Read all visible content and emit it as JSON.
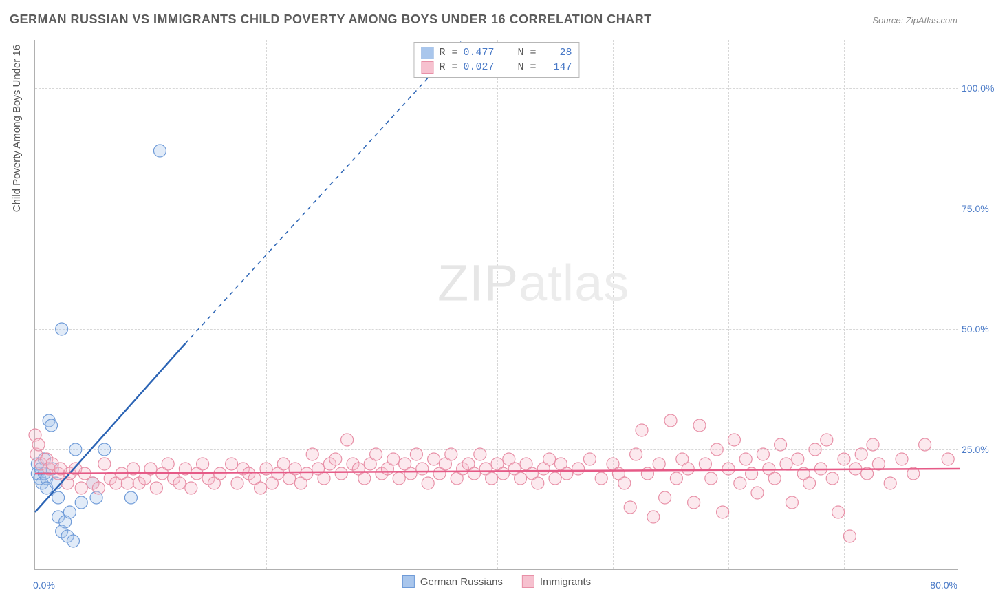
{
  "title": "GERMAN RUSSIAN VS IMMIGRANTS CHILD POVERTY AMONG BOYS UNDER 16 CORRELATION CHART",
  "source": "Source: ZipAtlas.com",
  "watermark_a": "ZIP",
  "watermark_b": "atlas",
  "chart": {
    "type": "scatter",
    "ylabel": "Child Poverty Among Boys Under 16",
    "xlim": [
      0,
      80
    ],
    "ylim": [
      0,
      110
    ],
    "xtick_vals": [
      0,
      80
    ],
    "xtick_labels": [
      "0.0%",
      "80.0%"
    ],
    "xtick_minor": [
      10,
      20,
      30,
      40,
      50,
      60,
      70
    ],
    "ytick_vals": [
      25,
      50,
      75,
      100
    ],
    "ytick_labels": [
      "25.0%",
      "50.0%",
      "75.0%",
      "100.0%"
    ],
    "grid_color": "#d7d7d7",
    "background_color": "#ffffff",
    "axis_color": "#b0b0b0",
    "tick_label_color": "#4a7ac7",
    "marker_radius": 9,
    "marker_stroke_width": 1.2,
    "marker_fill_opacity": 0.35,
    "series": [
      {
        "name": "German Russians",
        "color_fill": "#a9c6ec",
        "color_stroke": "#6f9bd8",
        "trend_color": "#2b64b5",
        "trend_solid": {
          "x1": 0,
          "y1": 12,
          "x2": 13,
          "y2": 47
        },
        "trend_dashed": {
          "x1": 13,
          "y1": 47,
          "x2": 37,
          "y2": 110
        },
        "R": "0.477",
        "N": "28",
        "points": [
          [
            0.2,
            20
          ],
          [
            0.2,
            22
          ],
          [
            0.4,
            19
          ],
          [
            0.5,
            21
          ],
          [
            0.6,
            18
          ],
          [
            0.8,
            20
          ],
          [
            0.8,
            23
          ],
          [
            1.0,
            19
          ],
          [
            1.0,
            17
          ],
          [
            1.2,
            31
          ],
          [
            1.4,
            30
          ],
          [
            1.5,
            21
          ],
          [
            1.8,
            18
          ],
          [
            2.0,
            15
          ],
          [
            2.0,
            11
          ],
          [
            2.3,
            8
          ],
          [
            2.6,
            10
          ],
          [
            2.8,
            7
          ],
          [
            3.0,
            12
          ],
          [
            3.3,
            6
          ],
          [
            3.5,
            25
          ],
          [
            4.0,
            14
          ],
          [
            5.0,
            18
          ],
          [
            5.3,
            15
          ],
          [
            6.0,
            25
          ],
          [
            8.3,
            15
          ],
          [
            2.3,
            50
          ],
          [
            10.8,
            87
          ]
        ]
      },
      {
        "name": "Immigrants",
        "color_fill": "#f6c1cf",
        "color_stroke": "#e890a7",
        "trend_color": "#e65a87",
        "trend_solid": {
          "x1": 0,
          "y1": 20,
          "x2": 80,
          "y2": 21
        },
        "R": "0.027",
        "N": "147",
        "points": [
          [
            0.0,
            28
          ],
          [
            0.1,
            24
          ],
          [
            0.3,
            26
          ],
          [
            0.5,
            22
          ],
          [
            1.0,
            23
          ],
          [
            1.2,
            21
          ],
          [
            1.5,
            22
          ],
          [
            2.0,
            20
          ],
          [
            2.2,
            21
          ],
          [
            2.8,
            18
          ],
          [
            3.0,
            20
          ],
          [
            3.5,
            21
          ],
          [
            4.0,
            17
          ],
          [
            4.3,
            20
          ],
          [
            5.0,
            18
          ],
          [
            5.5,
            17
          ],
          [
            6.0,
            22
          ],
          [
            6.5,
            19
          ],
          [
            7.0,
            18
          ],
          [
            7.5,
            20
          ],
          [
            8.0,
            18
          ],
          [
            8.5,
            21
          ],
          [
            9.0,
            18
          ],
          [
            9.5,
            19
          ],
          [
            10,
            21
          ],
          [
            10.5,
            17
          ],
          [
            11,
            20
          ],
          [
            11.5,
            22
          ],
          [
            12,
            19
          ],
          [
            12.5,
            18
          ],
          [
            13,
            21
          ],
          [
            13.5,
            17
          ],
          [
            14,
            20
          ],
          [
            14.5,
            22
          ],
          [
            15,
            19
          ],
          [
            15.5,
            18
          ],
          [
            16,
            20
          ],
          [
            17,
            22
          ],
          [
            17.5,
            18
          ],
          [
            18,
            21
          ],
          [
            18.5,
            20
          ],
          [
            19,
            19
          ],
          [
            19.5,
            17
          ],
          [
            20,
            21
          ],
          [
            20.5,
            18
          ],
          [
            21,
            20
          ],
          [
            21.5,
            22
          ],
          [
            22,
            19
          ],
          [
            22.5,
            21
          ],
          [
            23,
            18
          ],
          [
            23.5,
            20
          ],
          [
            24,
            24
          ],
          [
            24.5,
            21
          ],
          [
            25,
            19
          ],
          [
            25.5,
            22
          ],
          [
            26,
            23
          ],
          [
            26.5,
            20
          ],
          [
            27,
            27
          ],
          [
            27.5,
            22
          ],
          [
            28,
            21
          ],
          [
            28.5,
            19
          ],
          [
            29,
            22
          ],
          [
            29.5,
            24
          ],
          [
            30,
            20
          ],
          [
            30.5,
            21
          ],
          [
            31,
            23
          ],
          [
            31.5,
            19
          ],
          [
            32,
            22
          ],
          [
            32.5,
            20
          ],
          [
            33,
            24
          ],
          [
            33.5,
            21
          ],
          [
            34,
            18
          ],
          [
            34.5,
            23
          ],
          [
            35,
            20
          ],
          [
            35.5,
            22
          ],
          [
            36,
            24
          ],
          [
            36.5,
            19
          ],
          [
            37,
            21
          ],
          [
            37.5,
            22
          ],
          [
            38,
            20
          ],
          [
            38.5,
            24
          ],
          [
            39,
            21
          ],
          [
            39.5,
            19
          ],
          [
            40,
            22
          ],
          [
            40.5,
            20
          ],
          [
            41,
            23
          ],
          [
            41.5,
            21
          ],
          [
            42,
            19
          ],
          [
            42.5,
            22
          ],
          [
            43,
            20
          ],
          [
            43.5,
            18
          ],
          [
            44,
            21
          ],
          [
            44.5,
            23
          ],
          [
            45,
            19
          ],
          [
            45.5,
            22
          ],
          [
            46,
            20
          ],
          [
            47,
            21
          ],
          [
            48,
            23
          ],
          [
            49,
            19
          ],
          [
            50,
            22
          ],
          [
            50.5,
            20
          ],
          [
            51,
            18
          ],
          [
            51.5,
            13
          ],
          [
            52,
            24
          ],
          [
            52.5,
            29
          ],
          [
            53,
            20
          ],
          [
            53.5,
            11
          ],
          [
            54,
            22
          ],
          [
            54.5,
            15
          ],
          [
            55,
            31
          ],
          [
            55.5,
            19
          ],
          [
            56,
            23
          ],
          [
            56.5,
            21
          ],
          [
            57,
            14
          ],
          [
            57.5,
            30
          ],
          [
            58,
            22
          ],
          [
            58.5,
            19
          ],
          [
            59,
            25
          ],
          [
            59.5,
            12
          ],
          [
            60,
            21
          ],
          [
            60.5,
            27
          ],
          [
            61,
            18
          ],
          [
            61.5,
            23
          ],
          [
            62,
            20
          ],
          [
            62.5,
            16
          ],
          [
            63,
            24
          ],
          [
            63.5,
            21
          ],
          [
            64,
            19
          ],
          [
            64.5,
            26
          ],
          [
            65,
            22
          ],
          [
            65.5,
            14
          ],
          [
            66,
            23
          ],
          [
            66.5,
            20
          ],
          [
            67,
            18
          ],
          [
            67.5,
            25
          ],
          [
            68,
            21
          ],
          [
            68.5,
            27
          ],
          [
            69,
            19
          ],
          [
            69.5,
            12
          ],
          [
            70,
            23
          ],
          [
            70.5,
            7
          ],
          [
            71,
            21
          ],
          [
            71.5,
            24
          ],
          [
            72,
            20
          ],
          [
            72.5,
            26
          ],
          [
            73,
            22
          ],
          [
            74,
            18
          ],
          [
            75,
            23
          ],
          [
            76,
            20
          ],
          [
            77,
            26
          ],
          [
            79,
            23
          ]
        ]
      }
    ]
  },
  "legend_top": {
    "label_R": "R =",
    "label_N": "N ="
  },
  "legend_bottom": [
    {
      "label": "German Russians"
    },
    {
      "label": "Immigrants"
    }
  ]
}
